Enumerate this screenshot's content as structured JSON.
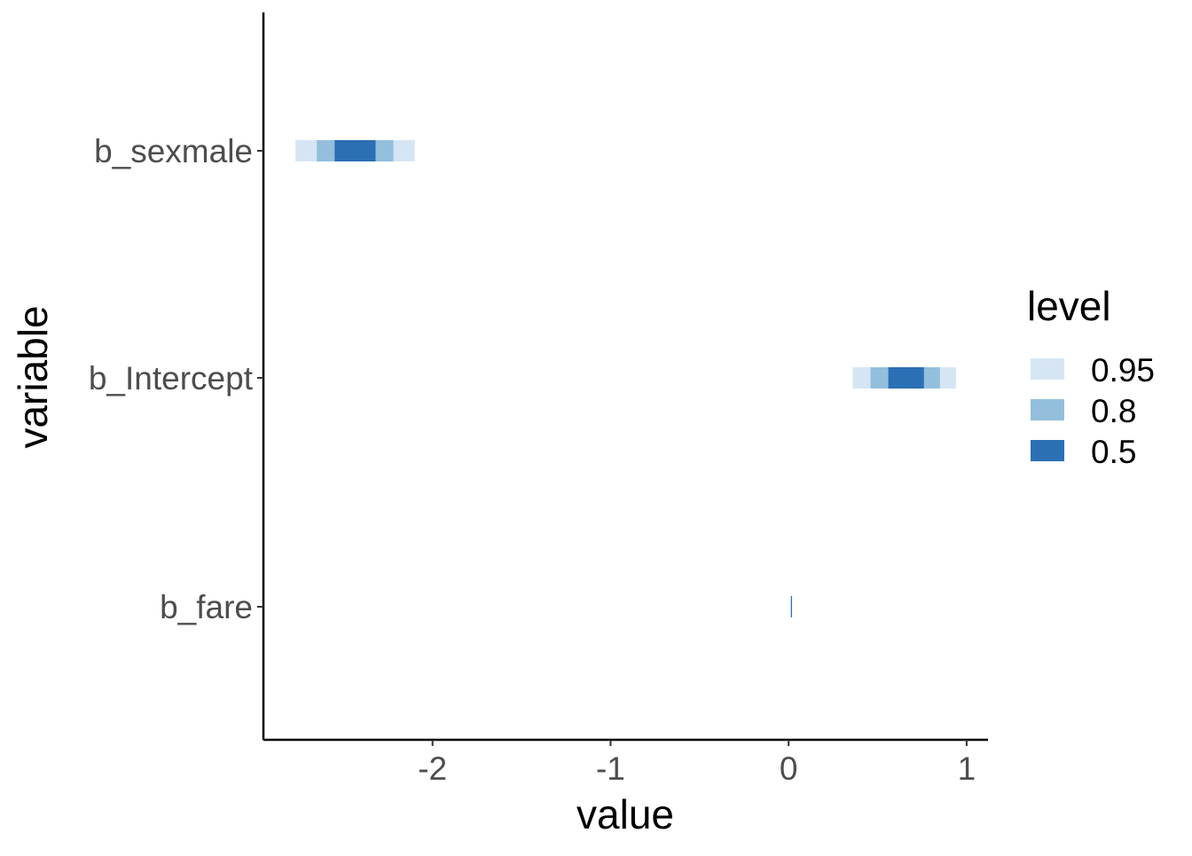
{
  "chart_data": {
    "type": "interval",
    "xlabel": "value",
    "ylabel": "variable",
    "xlim": [
      -2.95,
      1.12
    ],
    "x_ticks": [
      -2,
      -1,
      0,
      1
    ],
    "x_tick_labels": [
      "-2",
      "-1",
      "0",
      "1"
    ],
    "categories": [
      "b_sexmale",
      "b_Intercept",
      "b_fare"
    ],
    "grid": false,
    "legend": {
      "title": "level",
      "position": "right",
      "entries": [
        {
          "label": "0.95",
          "color": "#d6e5f4"
        },
        {
          "label": "0.8",
          "color": "#93bfdd"
        },
        {
          "label": "0.5",
          "color": "#2b6fb4"
        }
      ]
    },
    "intervals": [
      {
        "variable": "b_sexmale",
        "levels": {
          "0.95": [
            -2.77,
            -2.1
          ],
          "0.8": [
            -2.65,
            -2.22
          ],
          "0.5": [
            -2.55,
            -2.32
          ]
        }
      },
      {
        "variable": "b_Intercept",
        "levels": {
          "0.95": [
            0.36,
            0.94
          ],
          "0.8": [
            0.46,
            0.85
          ],
          "0.5": [
            0.56,
            0.76
          ]
        }
      },
      {
        "variable": "b_fare",
        "levels": {
          "0.95": [
            0.01,
            0.02
          ],
          "0.8": [
            0.012,
            0.018
          ],
          "0.5": [
            0.014,
            0.016
          ]
        }
      }
    ]
  }
}
